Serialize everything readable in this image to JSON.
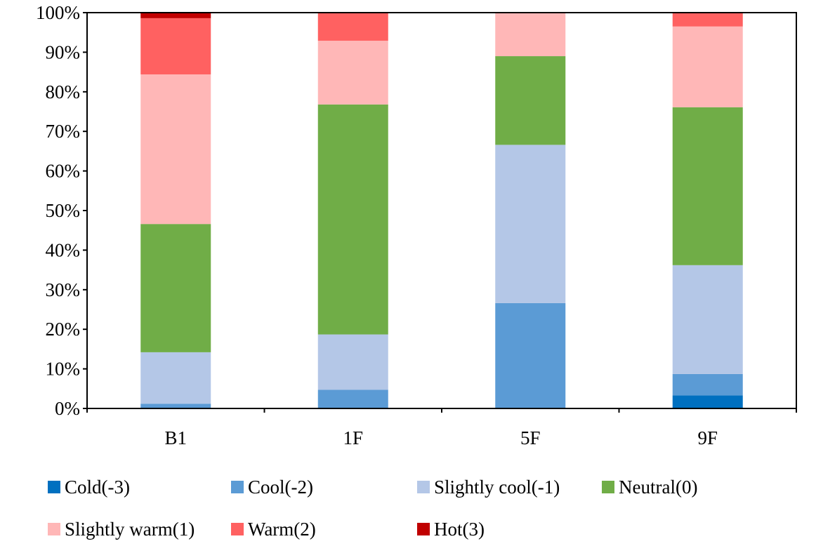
{
  "chart_data": {
    "type": "bar",
    "stacked": true,
    "percent": true,
    "title": "",
    "xlabel": "",
    "ylabel": "",
    "ylim": [
      0,
      100
    ],
    "yticks": [
      "0%",
      "10%",
      "20%",
      "30%",
      "40%",
      "50%",
      "60%",
      "70%",
      "80%",
      "90%",
      "100%"
    ],
    "categories": [
      "B1",
      "1F",
      "5F",
      "9F"
    ],
    "grid": false,
    "legend_position": "bottom",
    "series": [
      {
        "name": "Cold(-3)",
        "color": "#0070C0",
        "values": [
          0,
          0,
          0,
          3.3
        ]
      },
      {
        "name": "Cool(-2)",
        "color": "#5B9BD5",
        "values": [
          1.2,
          4.7,
          26.6,
          5.4
        ]
      },
      {
        "name": "Slightly cool(-1)",
        "color": "#B4C7E7",
        "values": [
          13.0,
          14.0,
          40.0,
          27.5
        ]
      },
      {
        "name": "Neutral(0)",
        "color": "#70AD47",
        "values": [
          32.4,
          58.1,
          22.4,
          39.9
        ]
      },
      {
        "name": "Slightly warm(1)",
        "color": "#FFB7B7",
        "values": [
          37.8,
          16.1,
          11.0,
          20.4
        ]
      },
      {
        "name": "Warm(2)",
        "color": "#FF6161",
        "values": [
          14.2,
          7.1,
          0,
          3.5
        ]
      },
      {
        "name": "Hot(3)",
        "color": "#C00000",
        "values": [
          1.4,
          0,
          0,
          0
        ]
      }
    ]
  }
}
